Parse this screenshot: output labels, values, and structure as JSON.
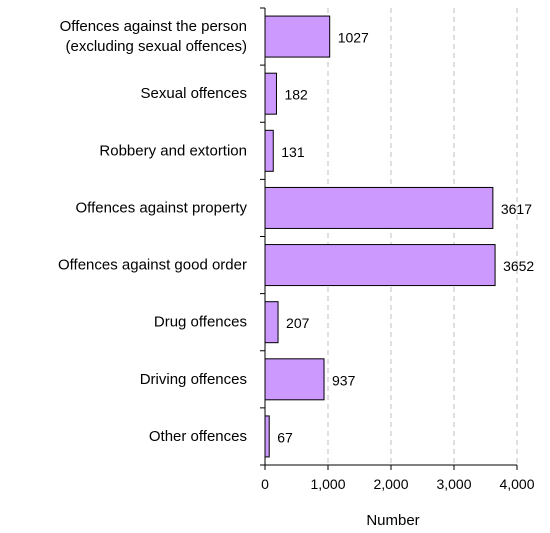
{
  "chart_data": {
    "type": "bar",
    "orientation": "horizontal",
    "categories": [
      [
        "Offences against the person",
        "(excluding sexual offences)"
      ],
      [
        "Sexual offences"
      ],
      [
        "Robbery and extortion"
      ],
      [
        "Offences against property"
      ],
      [
        "Offences against good order"
      ],
      [
        "Drug offences"
      ],
      [
        "Driving offences"
      ],
      [
        "Other offences"
      ]
    ],
    "values": [
      1027,
      182,
      131,
      3617,
      3652,
      207,
      937,
      67
    ],
    "value_labels": [
      "1027",
      "182",
      "131",
      "3617",
      "3652",
      "207",
      "937",
      "67"
    ],
    "xlabel": "Number",
    "xlim": [
      0,
      4000
    ],
    "xticks": [
      0,
      1000,
      2000,
      3000,
      4000
    ],
    "xtick_labels": [
      "0",
      "1,000",
      "2,000",
      "3,000",
      "4,000"
    ],
    "grid": "vertical dashed",
    "bar_color": "#cc99ff",
    "bar_edge_color": "#000000",
    "grid_color": "#bfbfbf"
  }
}
